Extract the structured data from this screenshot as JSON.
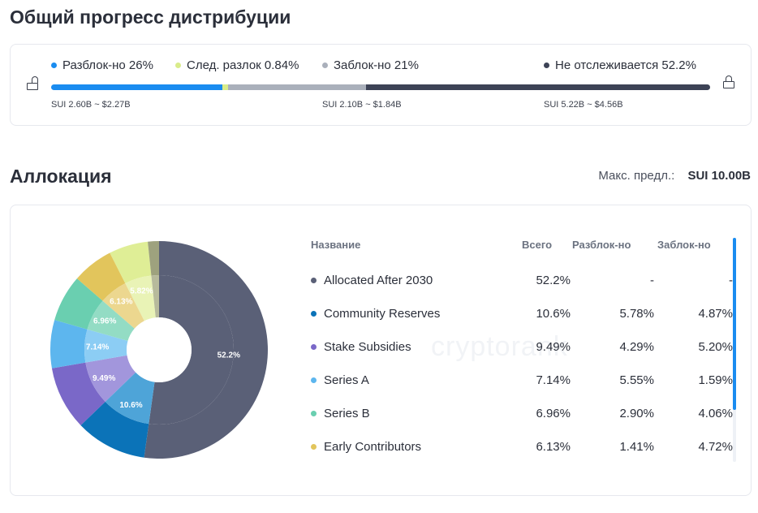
{
  "distribution": {
    "title": "Общий прогресс дистрибуции",
    "legend": [
      {
        "label": "Разблок-но 26%",
        "color": "#1a8cf0"
      },
      {
        "label": "След. разлок 0.84%",
        "color": "#d9ec8a"
      },
      {
        "label": "Заблок-но 21%",
        "color": "#aab0bb"
      },
      {
        "label": "Не отслеживается 52.2%",
        "color": "#3d4356"
      }
    ],
    "progress": {
      "unlocked_pct": 26,
      "next_unlock_pct": 0.84,
      "locked_pct": 21,
      "untracked_pct": 52.2
    },
    "sublabels": {
      "unlocked": "SUI 2.60B ~ $2.27B",
      "locked": "SUI 2.10B ~ $1.84B",
      "untracked": "SUI 5.22B ~ $4.56B"
    }
  },
  "allocation": {
    "title": "Аллокация",
    "max_supply_label": "Макс. предл.:",
    "max_supply_value": "SUI 10.00B",
    "watermark": "cryptorank",
    "headers": {
      "name": "Название",
      "total": "Всего",
      "unlocked": "Разблок-но",
      "locked": "Заблок-но"
    },
    "rows": [
      {
        "name": "Allocated After 2030",
        "total": "52.2%",
        "unlocked": "-",
        "locked": "-",
        "color": "#5a6077"
      },
      {
        "name": "Community Reserves",
        "total": "10.6%",
        "unlocked": "5.78%",
        "locked": "4.87%",
        "color": "#0b73b8"
      },
      {
        "name": "Stake Subsidies",
        "total": "9.49%",
        "unlocked": "4.29%",
        "locked": "5.20%",
        "color": "#7a68c8"
      },
      {
        "name": "Series A",
        "total": "7.14%",
        "unlocked": "5.55%",
        "locked": "1.59%",
        "color": "#5db6ee"
      },
      {
        "name": "Series B",
        "total": "6.96%",
        "unlocked": "2.90%",
        "locked": "4.06%",
        "color": "#6acfb0"
      },
      {
        "name": "Early Contributors",
        "total": "6.13%",
        "unlocked": "1.41%",
        "locked": "4.72%",
        "color": "#e2c55c"
      }
    ]
  },
  "chart_data": {
    "type": "pie",
    "labels": [
      "Allocated After 2030",
      "Community Reserves",
      "Stake Subsidies",
      "Series A",
      "Series B",
      "Early Contributors",
      "",
      ""
    ],
    "values": [
      52.2,
      10.6,
      9.49,
      7.14,
      6.96,
      6.13,
      5.82,
      1.66
    ],
    "data_labels": [
      "52.2%",
      "10.6%",
      "9.49%",
      "7.14%",
      "6.96%",
      "6.13%",
      "5.82%",
      ""
    ],
    "colors": [
      "#5a6077",
      "#0b73b8",
      "#7a68c8",
      "#5db6ee",
      "#6acfb0",
      "#e2c55c",
      "#dfee96",
      "#9ea27e"
    ],
    "inner_colors": [
      "#5a6077",
      "#4ea4d8",
      "#a296dc",
      "#8ccdf4",
      "#93dcc4",
      "#ecd78f",
      "#e9f3b6",
      "#b7ba9c"
    ]
  }
}
